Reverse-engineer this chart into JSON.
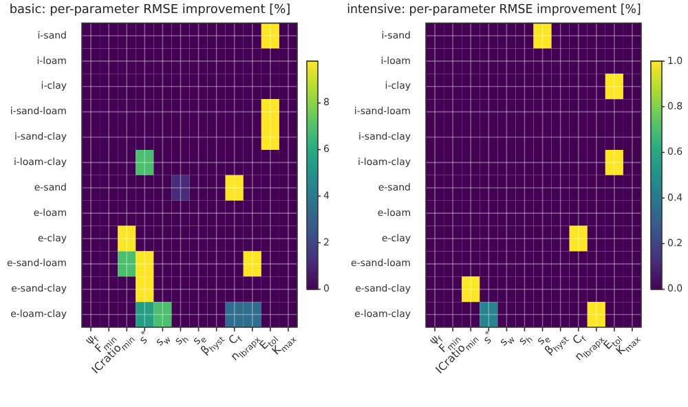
{
  "chart_data": [
    {
      "type": "heatmap",
      "title": "basic: per-parameter RMSE improvement [%]",
      "grid": true,
      "categories": [
        "ψ$_{f}$",
        "F$_{min}$",
        "ICratio$_{min}$",
        "s$^{*}$",
        "s$_{w}$",
        "s$_{h}$",
        "s$_{e}$",
        "β$_{hyst}$",
        "C$_{f}$",
        "n$_{lbrapx}$",
        "E$_{tol}$",
        "K$_{max}$"
      ],
      "y_categories": [
        "i-sand",
        "i-loam",
        "i-clay",
        "i-sand-loam",
        "i-sand-clay",
        "i-loam-clay",
        "e-sand",
        "e-loam",
        "e-clay",
        "e-sand-loam",
        "e-sand-clay",
        "e-loam-clay"
      ],
      "cells": [
        [
          0,
          0,
          0,
          0,
          0,
          0,
          0,
          0,
          0,
          0,
          9.8,
          0
        ],
        [
          0,
          0,
          0,
          0,
          0,
          0,
          0,
          0,
          0,
          0,
          0,
          0
        ],
        [
          0,
          0,
          0,
          0,
          0,
          0,
          0,
          0,
          0,
          0,
          0,
          0
        ],
        [
          0,
          0,
          0,
          0,
          0,
          0,
          0,
          0,
          0,
          0,
          9.8,
          0
        ],
        [
          0,
          0,
          0,
          0,
          0,
          0,
          0,
          0,
          0,
          0,
          9.8,
          0
        ],
        [
          0,
          0,
          0,
          6.9,
          0,
          0,
          0,
          0,
          0,
          0,
          0,
          0
        ],
        [
          0,
          0,
          0,
          0,
          0,
          1.2,
          0,
          0,
          9.8,
          0,
          0,
          0
        ],
        [
          0,
          0,
          0,
          0,
          0,
          0,
          0,
          0,
          0,
          0,
          0,
          0
        ],
        [
          0,
          0,
          9.8,
          0,
          0,
          0,
          0,
          0,
          0,
          0,
          0,
          0
        ],
        [
          0,
          0,
          6.9,
          9.8,
          0,
          0,
          0,
          0,
          0,
          9.8,
          0,
          0
        ],
        [
          0,
          0,
          0,
          9.8,
          0,
          0,
          0,
          0,
          0,
          0,
          0,
          0
        ],
        [
          0,
          0,
          0,
          5.5,
          6.9,
          0,
          0,
          0,
          3.5,
          3.5,
          0,
          0
        ]
      ],
      "clim": [
        0,
        9.8
      ],
      "cticks": [
        0,
        2,
        4,
        6,
        8
      ]
    },
    {
      "type": "heatmap",
      "title": "intensive: per-parameter RMSE improvement [%]",
      "grid": true,
      "categories": [
        "ψ$_{f}$",
        "F$_{min}$",
        "ICratio$_{min}$",
        "s$^{*}$",
        "s$_{w}$",
        "s$_{h}$",
        "s$_{e}$",
        "β$_{hyst}$",
        "C$_{f}$",
        "n$_{lbrapx}$",
        "E$_{tol}$",
        "K$_{max}$"
      ],
      "y_categories": [
        "i-sand",
        "i-loam",
        "i-clay",
        "i-sand-loam",
        "i-sand-clay",
        "i-loam-clay",
        "e-sand",
        "e-loam",
        "e-clay",
        "e-sand-loam",
        "e-sand-clay",
        "e-loam-clay"
      ],
      "cells": [
        [
          0,
          0,
          0,
          0,
          0,
          0,
          1,
          0,
          0,
          0,
          0,
          0
        ],
        [
          0,
          0,
          0,
          0,
          0,
          0,
          0,
          0,
          0,
          0,
          0,
          0
        ],
        [
          0,
          0,
          0,
          0,
          0,
          0,
          0,
          0,
          0,
          0,
          1,
          0
        ],
        [
          0,
          0,
          0,
          0,
          0,
          0,
          0,
          0,
          0,
          0,
          0,
          0
        ],
        [
          0,
          0,
          0,
          0,
          0,
          0,
          0,
          0,
          0,
          0,
          0,
          0
        ],
        [
          0,
          0,
          0,
          0,
          0,
          0,
          0,
          0,
          0,
          0,
          1,
          0
        ],
        [
          0,
          0,
          0,
          0,
          0,
          0,
          0,
          0,
          0,
          0,
          0,
          0
        ],
        [
          0,
          0,
          0,
          0,
          0,
          0,
          0,
          0,
          0,
          0,
          0,
          0
        ],
        [
          0,
          0,
          0,
          0,
          0,
          0,
          0,
          0,
          1,
          0,
          0,
          0
        ],
        [
          0,
          0,
          0,
          0,
          0,
          0,
          0,
          0,
          0,
          0,
          0,
          0
        ],
        [
          0,
          0,
          1,
          0,
          0,
          0,
          0,
          0,
          0,
          0,
          0,
          0
        ],
        [
          0,
          0,
          0,
          0.45,
          0,
          0,
          0,
          0,
          0,
          1,
          0,
          0
        ]
      ],
      "clim": [
        0,
        1
      ],
      "cticks": [
        {
          "value": 0,
          "label": "0.0"
        },
        0.2,
        0.4,
        0.6,
        0.8,
        {
          "value": 1,
          "label": "1.0"
        }
      ]
    }
  ]
}
